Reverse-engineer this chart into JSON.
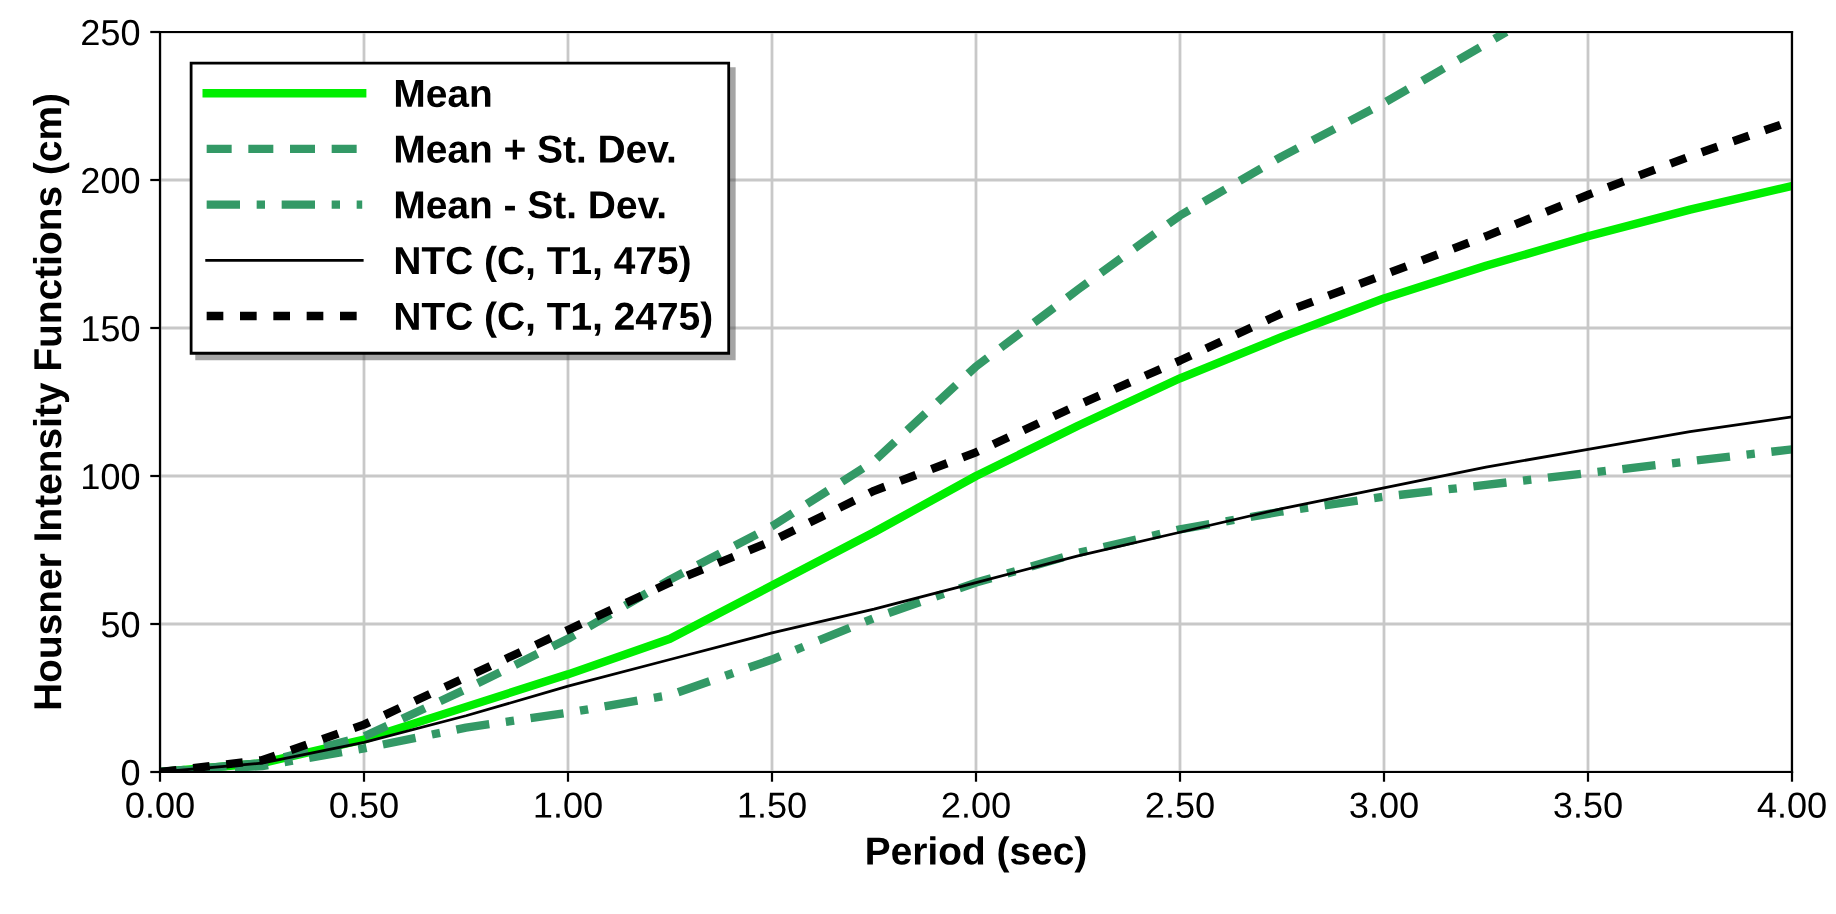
{
  "chart_data": {
    "type": "line",
    "xlabel": "Period (sec)",
    "ylabel": "Housner Intensity Functions (cm)",
    "x": [
      0,
      0.25,
      0.5,
      0.75,
      1.0,
      1.25,
      1.5,
      1.75,
      2.0,
      2.25,
      2.5,
      2.75,
      3.0,
      3.25,
      3.5,
      3.75,
      4.0
    ],
    "xlim": [
      0,
      4
    ],
    "xticks": [
      {
        "value": 0,
        "label": "0.00"
      },
      {
        "value": 0.5,
        "label": "0.50"
      },
      {
        "value": 1,
        "label": "1.00"
      },
      {
        "value": 1.5,
        "label": "1.50"
      },
      {
        "value": 2,
        "label": "2.00"
      },
      {
        "value": 2.5,
        "label": "2.50"
      },
      {
        "value": 3,
        "label": "3.00"
      },
      {
        "value": 3.5,
        "label": "3.50"
      },
      {
        "value": 4,
        "label": "4.00"
      }
    ],
    "ylim": [
      0,
      250
    ],
    "yticks": [
      0,
      50,
      100,
      150,
      200,
      250
    ],
    "grid": true,
    "legend": "top left",
    "marker": "none",
    "series": [
      {
        "name": "Mean",
        "color": "#00ee00",
        "line_style": "solid",
        "values": [
          0,
          3,
          11,
          22,
          33,
          45,
          63,
          81,
          100,
          117,
          133,
          147,
          160,
          171,
          181,
          190,
          198
        ]
      },
      {
        "name": "Mean + St. Dev.",
        "color": "#339966",
        "line_style": "dashed",
        "x": [
          0,
          0.25,
          0.5,
          0.75,
          1.0,
          1.25,
          1.5,
          1.75,
          2.0,
          2.25,
          2.5,
          2.75,
          3.0,
          3.25,
          3.3
        ],
        "values": [
          0,
          3,
          12,
          28,
          45,
          65,
          83,
          105,
          137,
          163,
          188,
          208,
          226,
          246,
          250
        ]
      },
      {
        "name": "Mean - St. Dev.",
        "color": "#339966",
        "line_style": "dashdot",
        "values": [
          0,
          2,
          8,
          15,
          20,
          26,
          38,
          52,
          64,
          74,
          82,
          88,
          93,
          97,
          101,
          105,
          109
        ]
      },
      {
        "name": "NTC (C, T1, 475)",
        "color": "#000000",
        "line_style": "solid",
        "values": [
          0,
          3,
          10,
          19,
          29,
          38,
          47,
          55,
          64,
          73,
          81,
          89,
          96,
          103,
          109,
          115,
          120
        ]
      },
      {
        "name": "NTC (C, T1, 2475)",
        "color": "#000000",
        "line_style": "dotted",
        "values": [
          0,
          4,
          16,
          32,
          48,
          64,
          78,
          95,
          108,
          124,
          139,
          155,
          168,
          181,
          195,
          208,
          220
        ]
      }
    ]
  }
}
